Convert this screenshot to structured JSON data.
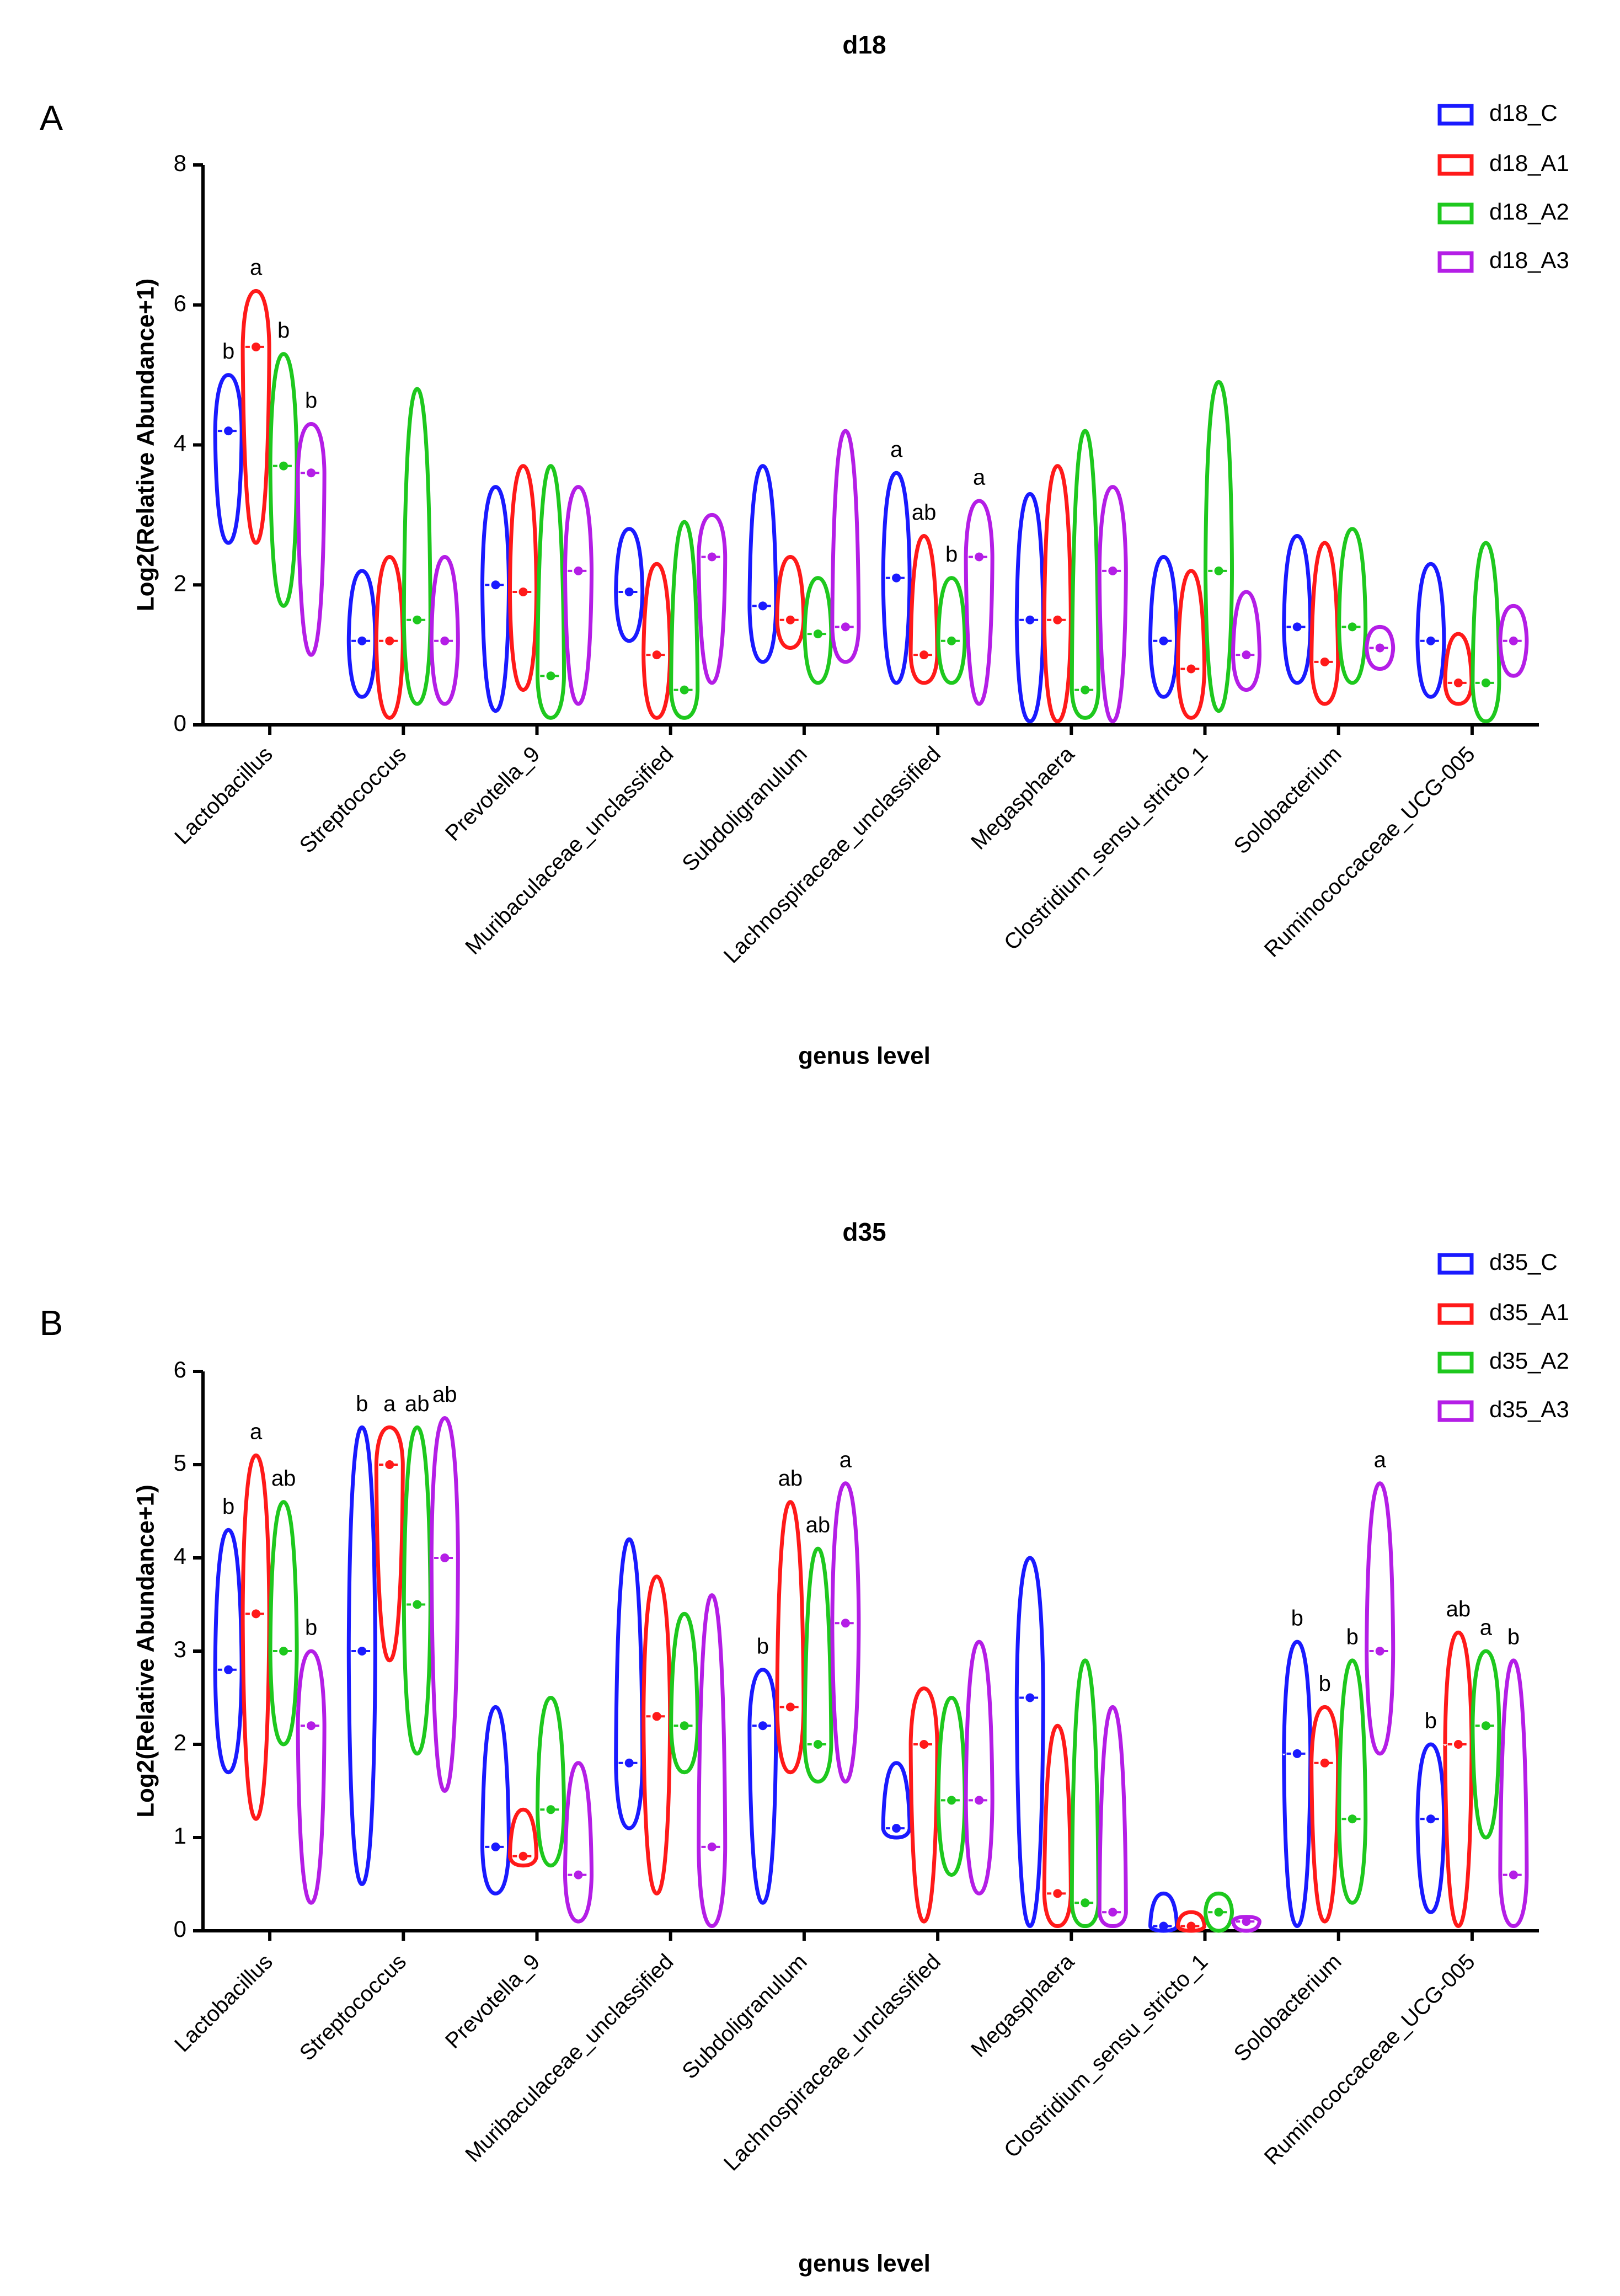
{
  "chart_data": [
    {
      "type": "violin",
      "title": "d18",
      "panel_label": "A",
      "x_label": "genus level",
      "y_label": "Log2(Relative Abundance+1)",
      "categories": [
        "Lactobacillus",
        "Streptococcus",
        "Prevotella_9",
        "Muribaculaceae_unclassified",
        "Subdoligranulum",
        "Lachnospiraceae_unclassified",
        "Megasphaera",
        "Clostridium_sensu_stricto_1",
        "Solobacterium",
        "Ruminococcaceae_UCG-005"
      ],
      "ylim": [
        0,
        8
      ],
      "yticks": [
        0,
        2,
        4,
        6,
        8
      ],
      "series": [
        {
          "name": "d18_C",
          "color": "#1a1aff",
          "values": [
            {
              "min": 2.6,
              "median": 4.2,
              "max": 5.0
            },
            {
              "min": 0.4,
              "median": 1.2,
              "max": 2.2
            },
            {
              "min": 0.2,
              "median": 2.0,
              "max": 3.4
            },
            {
              "min": 1.2,
              "median": 1.9,
              "max": 2.8
            },
            {
              "min": 0.9,
              "median": 1.7,
              "max": 3.7
            },
            {
              "min": 0.6,
              "median": 2.1,
              "max": 3.6
            },
            {
              "min": 0.05,
              "median": 1.5,
              "max": 3.3
            },
            {
              "min": 0.4,
              "median": 1.2,
              "max": 2.4
            },
            {
              "min": 0.6,
              "median": 1.4,
              "max": 2.7
            },
            {
              "min": 0.4,
              "median": 1.2,
              "max": 2.3
            }
          ],
          "annotations": [
            "b",
            null,
            null,
            null,
            null,
            "a",
            null,
            null,
            null,
            null
          ]
        },
        {
          "name": "d18_A1",
          "color": "#ff1a1a",
          "values": [
            {
              "min": 2.6,
              "median": 5.4,
              "max": 6.2
            },
            {
              "min": 0.1,
              "median": 1.2,
              "max": 2.4
            },
            {
              "min": 0.5,
              "median": 1.9,
              "max": 3.7
            },
            {
              "min": 0.1,
              "median": 1.0,
              "max": 2.3
            },
            {
              "min": 1.1,
              "median": 1.5,
              "max": 2.4
            },
            {
              "min": 0.6,
              "median": 1.0,
              "max": 2.7
            },
            {
              "min": 0.05,
              "median": 1.5,
              "max": 3.7
            },
            {
              "min": 0.1,
              "median": 0.8,
              "max": 2.2
            },
            {
              "min": 0.3,
              "median": 0.9,
              "max": 2.6
            },
            {
              "min": 0.3,
              "median": 0.6,
              "max": 1.3
            }
          ],
          "annotations": [
            "a",
            null,
            null,
            null,
            null,
            "ab",
            null,
            null,
            null,
            null
          ]
        },
        {
          "name": "d18_A2",
          "color": "#1ec81e",
          "values": [
            {
              "min": 1.7,
              "median": 3.7,
              "max": 5.3
            },
            {
              "min": 0.3,
              "median": 1.5,
              "max": 4.8
            },
            {
              "min": 0.1,
              "median": 0.7,
              "max": 3.7
            },
            {
              "min": 0.1,
              "median": 0.5,
              "max": 2.9
            },
            {
              "min": 0.6,
              "median": 1.3,
              "max": 2.1
            },
            {
              "min": 0.6,
              "median": 1.2,
              "max": 2.1
            },
            {
              "min": 0.1,
              "median": 0.5,
              "max": 4.2
            },
            {
              "min": 0.2,
              "median": 2.2,
              "max": 4.9
            },
            {
              "min": 0.6,
              "median": 1.4,
              "max": 2.8
            },
            {
              "min": 0.05,
              "median": 0.6,
              "max": 2.6
            }
          ],
          "annotations": [
            "b",
            null,
            null,
            null,
            null,
            "b",
            null,
            null,
            null,
            null
          ]
        },
        {
          "name": "d18_A3",
          "color": "#b41ee6",
          "values": [
            {
              "min": 1.0,
              "median": 3.6,
              "max": 4.3
            },
            {
              "min": 0.3,
              "median": 1.2,
              "max": 2.4
            },
            {
              "min": 0.3,
              "median": 2.2,
              "max": 3.4
            },
            {
              "min": 0.6,
              "median": 2.4,
              "max": 3.0
            },
            {
              "min": 0.9,
              "median": 1.4,
              "max": 4.2
            },
            {
              "min": 0.3,
              "median": 2.4,
              "max": 3.2
            },
            {
              "min": 0.05,
              "median": 2.2,
              "max": 3.4
            },
            {
              "min": 0.5,
              "median": 1.0,
              "max": 1.9
            },
            {
              "min": 0.8,
              "median": 1.1,
              "max": 1.4
            },
            {
              "min": 0.7,
              "median": 1.2,
              "max": 1.7
            }
          ],
          "annotations": [
            "b",
            null,
            null,
            null,
            null,
            "a",
            null,
            null,
            null,
            null
          ]
        }
      ]
    },
    {
      "type": "violin",
      "title": "d35",
      "panel_label": "B",
      "x_label": "genus level",
      "y_label": "Log2(Relative Abundance+1)",
      "categories": [
        "Lactobacillus",
        "Streptococcus",
        "Prevotella_9",
        "Muribaculaceae_unclassified",
        "Subdoligranulum",
        "Lachnospiraceae_unclassified",
        "Megasphaera",
        "Clostridium_sensu_stricto_1",
        "Solobacterium",
        "Ruminococcaceae_UCG-005"
      ],
      "ylim": [
        0,
        6
      ],
      "yticks": [
        0,
        1,
        2,
        3,
        4,
        5,
        6
      ],
      "series": [
        {
          "name": "d35_C",
          "color": "#1a1aff",
          "values": [
            {
              "min": 1.7,
              "median": 2.8,
              "max": 4.3
            },
            {
              "min": 0.5,
              "median": 3.0,
              "max": 5.4
            },
            {
              "min": 0.4,
              "median": 0.9,
              "max": 2.4
            },
            {
              "min": 1.1,
              "median": 1.8,
              "max": 4.2
            },
            {
              "min": 0.3,
              "median": 2.2,
              "max": 2.8
            },
            {
              "min": 1.0,
              "median": 1.1,
              "max": 1.8
            },
            {
              "min": 0.05,
              "median": 2.5,
              "max": 4.0
            },
            {
              "min": 0.0,
              "median": 0.05,
              "max": 0.4
            },
            {
              "min": 0.05,
              "median": 1.9,
              "max": 3.1
            },
            {
              "min": 0.2,
              "median": 1.2,
              "max": 2.0
            }
          ],
          "annotations": [
            "b",
            "b",
            null,
            null,
            "b",
            null,
            null,
            null,
            "b",
            "b"
          ]
        },
        {
          "name": "d35_A1",
          "color": "#ff1a1a",
          "values": [
            {
              "min": 1.2,
              "median": 3.4,
              "max": 5.1
            },
            {
              "min": 2.9,
              "median": 5.0,
              "max": 5.4
            },
            {
              "min": 0.7,
              "median": 0.8,
              "max": 1.3
            },
            {
              "min": 0.4,
              "median": 2.3,
              "max": 3.8
            },
            {
              "min": 1.7,
              "median": 2.4,
              "max": 4.6
            },
            {
              "min": 0.1,
              "median": 2.0,
              "max": 2.6
            },
            {
              "min": 0.05,
              "median": 0.4,
              "max": 2.2
            },
            {
              "min": 0.0,
              "median": 0.05,
              "max": 0.2
            },
            {
              "min": 0.1,
              "median": 1.8,
              "max": 2.4
            },
            {
              "min": 0.05,
              "median": 2.0,
              "max": 3.2
            }
          ],
          "annotations": [
            "a",
            "a",
            null,
            null,
            "ab",
            null,
            null,
            null,
            "b",
            "ab"
          ]
        },
        {
          "name": "d35_A2",
          "color": "#1ec81e",
          "values": [
            {
              "min": 2.0,
              "median": 3.0,
              "max": 4.6
            },
            {
              "min": 1.9,
              "median": 3.5,
              "max": 5.4
            },
            {
              "min": 0.7,
              "median": 1.3,
              "max": 2.5
            },
            {
              "min": 1.7,
              "median": 2.2,
              "max": 3.4
            },
            {
              "min": 1.6,
              "median": 2.0,
              "max": 4.1
            },
            {
              "min": 0.6,
              "median": 1.4,
              "max": 2.5
            },
            {
              "min": 0.05,
              "median": 0.3,
              "max": 2.9
            },
            {
              "min": 0.0,
              "median": 0.2,
              "max": 0.4
            },
            {
              "min": 0.3,
              "median": 1.2,
              "max": 2.9
            },
            {
              "min": 1.0,
              "median": 2.2,
              "max": 3.0
            }
          ],
          "annotations": [
            "ab",
            "ab",
            null,
            null,
            "ab",
            null,
            null,
            null,
            "b",
            "a"
          ]
        },
        {
          "name": "d35_A3",
          "color": "#b41ee6",
          "values": [
            {
              "min": 0.3,
              "median": 2.2,
              "max": 3.0
            },
            {
              "min": 1.5,
              "median": 4.0,
              "max": 5.5
            },
            {
              "min": 0.1,
              "median": 0.6,
              "max": 1.8
            },
            {
              "min": 0.05,
              "median": 0.9,
              "max": 3.6
            },
            {
              "min": 1.6,
              "median": 3.3,
              "max": 4.8
            },
            {
              "min": 0.4,
              "median": 1.4,
              "max": 3.1
            },
            {
              "min": 0.05,
              "median": 0.2,
              "max": 2.4
            },
            {
              "min": 0.0,
              "median": 0.1,
              "max": 0.15
            },
            {
              "min": 1.9,
              "median": 3.0,
              "max": 4.8
            },
            {
              "min": 0.05,
              "median": 0.6,
              "max": 2.9
            }
          ],
          "annotations": [
            "b",
            "ab",
            null,
            null,
            "a",
            null,
            null,
            null,
            "a",
            "b"
          ]
        }
      ]
    }
  ]
}
